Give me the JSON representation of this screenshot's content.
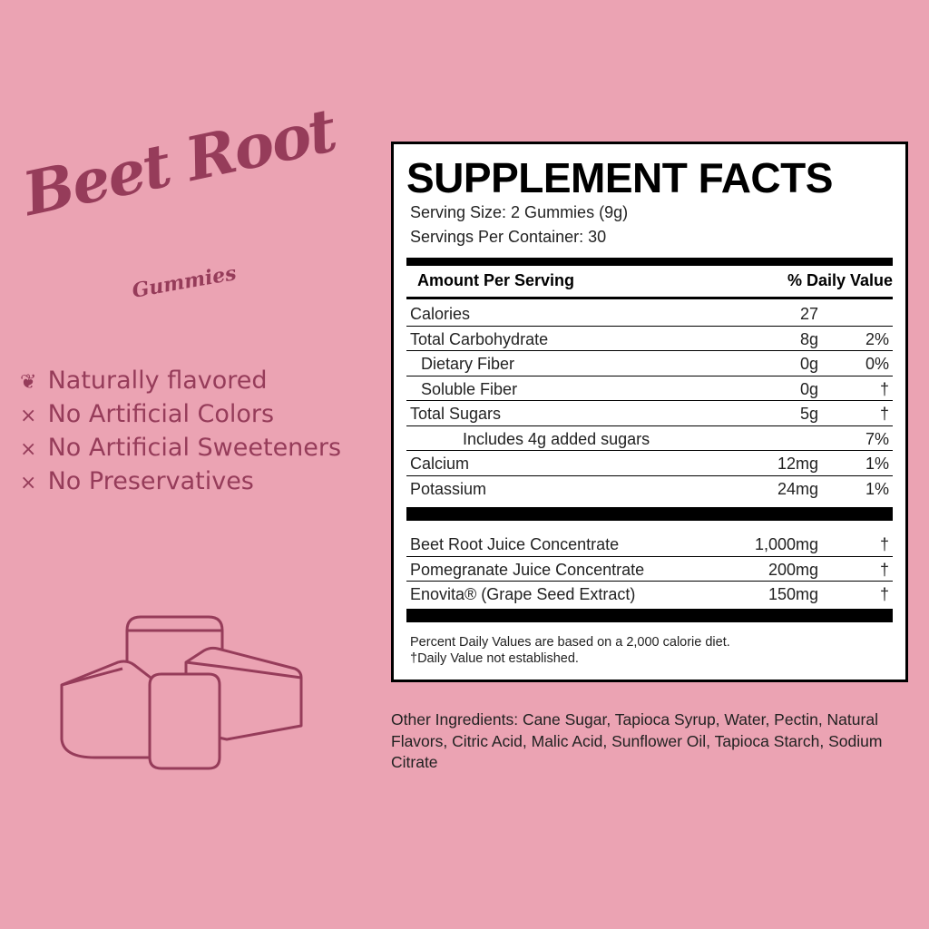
{
  "brand": {
    "title": "Beet Root",
    "subtitle": "Gummies"
  },
  "claims": [
    {
      "icon": "leaf-icon",
      "text": "Naturally flavored"
    },
    {
      "icon": "x-icon",
      "text": "No Artificial Colors"
    },
    {
      "icon": "x-icon",
      "text": "No Artificial Sweeteners"
    },
    {
      "icon": "x-icon",
      "text": "No Preservatives"
    }
  ],
  "colors": {
    "background": "#eba3b3",
    "brand": "#963c5a"
  },
  "facts": {
    "title": "SUPPLEMENT FACTS",
    "serving_size": "Serving Size: 2 Gummies (9g)",
    "servings": "Servings Per Container: 30",
    "header_amount": "Amount Per Serving",
    "header_dv": "% Daily Value",
    "nutrients": [
      {
        "name": "Calories",
        "amount": "27",
        "dv": ""
      },
      {
        "name": "Total Carbohydrate",
        "amount": "8g",
        "dv": "2%"
      },
      {
        "name": "Dietary Fiber",
        "amount": "0g",
        "dv": "0%"
      },
      {
        "name": "Soluble Fiber",
        "amount": "0g",
        "dv": "†"
      },
      {
        "name": "Total Sugars",
        "amount": "5g",
        "dv": "†"
      },
      {
        "name": "Includes 4g added sugars",
        "amount": "",
        "dv": "7%"
      },
      {
        "name": "Calcium",
        "amount": "12mg",
        "dv": "1%"
      },
      {
        "name": "Potassium",
        "amount": "24mg",
        "dv": "1%"
      }
    ],
    "ingredients": [
      {
        "name": "Beet Root Juice Concentrate",
        "amount": "1,000mg",
        "dv": "†"
      },
      {
        "name": "Pomegranate Juice Concentrate",
        "amount": "200mg",
        "dv": "†"
      },
      {
        "name": "Enovita® (Grape Seed Extract)",
        "amount": "150mg",
        "dv": "†"
      }
    ],
    "footnote1": "Percent Daily Values are based on a 2,000 calorie diet.",
    "footnote2": "†Daily Value not established."
  },
  "other_ingredients": "Other Ingredients: Cane Sugar, Tapioca Syrup, Water, Pectin, Natural Flavors, Citric Acid, Malic Acid, Sunflower Oil, Tapioca Starch, Sodium Citrate"
}
